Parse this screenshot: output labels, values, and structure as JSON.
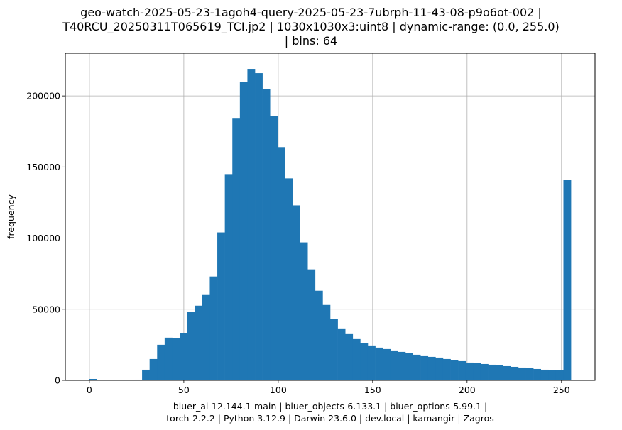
{
  "chart_data": {
    "type": "bar",
    "title": [
      "geo-watch-2025-05-23-1agoh4-query-2025-05-23-7ubrph-11-43-08-p9o6ot-002 |",
      "T40RCU_20250311T065619_TCI.jp2 | 1030x1030x3:uint8 | dynamic-range: (0.0, 255.0)",
      "| bins: 64"
    ],
    "xlabel": [
      "bluer_ai-12.144.1-main | bluer_objects-6.133.1 | bluer_options-5.99.1 |",
      "torch-2.2.2 | Python 3.12.9 | Darwin 23.6.0 | dev.local | kamangir | Zagros"
    ],
    "ylabel": "frequency",
    "xlim": [
      -12.75,
      267.75
    ],
    "ylim": [
      0,
      230000
    ],
    "xticks": [
      0,
      50,
      100,
      150,
      200,
      250
    ],
    "yticks": [
      0,
      50000,
      100000,
      150000,
      200000
    ],
    "grid": true,
    "bar_color": "#1f77b4",
    "bin_edges_range": [
      0,
      255
    ],
    "bins": 64,
    "values": [
      1000,
      0,
      0,
      0,
      0,
      0,
      500,
      7500,
      15000,
      25000,
      30000,
      29500,
      33000,
      48000,
      52500,
      60000,
      73000,
      104000,
      145000,
      184000,
      210000,
      219000,
      216000,
      205000,
      186000,
      164000,
      142000,
      123000,
      97000,
      78000,
      63000,
      53000,
      43000,
      36500,
      32500,
      29000,
      26000,
      24500,
      23000,
      22000,
      21000,
      20000,
      19000,
      18000,
      17000,
      16500,
      16000,
      15000,
      14000,
      13500,
      12500,
      12000,
      11500,
      11000,
      10500,
      10000,
      9500,
      9000,
      8500,
      8000,
      7500,
      7000,
      7000,
      141000
    ]
  }
}
